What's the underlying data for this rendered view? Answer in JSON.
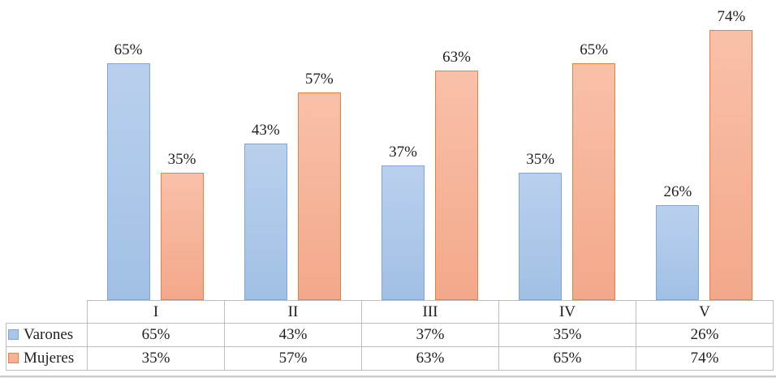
{
  "chart_data": {
    "type": "bar",
    "title": "",
    "categories": [
      "I",
      "II",
      "III",
      "IV",
      "V"
    ],
    "series": [
      {
        "name": "Varones",
        "values": [
          65,
          43,
          37,
          35,
          26
        ],
        "color_fill": "#A9C6E8",
        "color_fill_top": "#B9D0ED",
        "color_fill_bottom": "#A1C0E5",
        "color_border": "#7FA6D9"
      },
      {
        "name": "Mujeres",
        "values": [
          35,
          57,
          63,
          65,
          74
        ],
        "color_fill": "#F6B197",
        "color_fill_top": "#F9C0A9",
        "color_fill_bottom": "#F3A88A",
        "color_border": "#E8813F"
      }
    ],
    "value_suffix": "%",
    "ylim": [
      0,
      80
    ],
    "gridlines": false,
    "data_labels_shown": true,
    "legend_position": "data-table-left"
  },
  "table": {
    "corner_label": "",
    "header": [
      "I",
      "II",
      "III",
      "IV",
      "V"
    ],
    "rows": [
      {
        "label": "Varones",
        "cells": [
          "65%",
          "43%",
          "37%",
          "35%",
          "26%"
        ]
      },
      {
        "label": "Mujeres",
        "cells": [
          "35%",
          "57%",
          "63%",
          "65%",
          "74%"
        ]
      }
    ]
  }
}
